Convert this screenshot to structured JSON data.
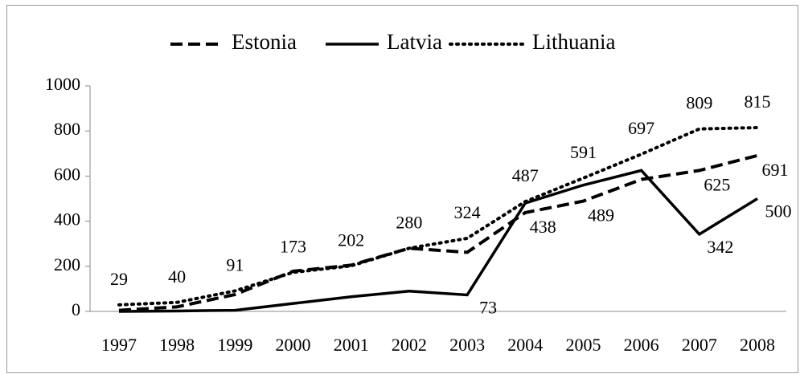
{
  "chart_data": {
    "type": "line",
    "categories": [
      "1997",
      "1998",
      "1999",
      "2000",
      "2001",
      "2002",
      "2003",
      "2004",
      "2005",
      "2006",
      "2007",
      "2008"
    ],
    "series": [
      {
        "name": "Estonia",
        "color": "#000000",
        "dash": "dashed",
        "values": [
          5,
          20,
          75,
          178,
          205,
          280,
          262,
          438,
          489,
          585,
          625,
          691
        ],
        "value_labels": [
          null,
          null,
          null,
          null,
          null,
          null,
          null,
          "438",
          "489",
          null,
          "625",
          "691"
        ]
      },
      {
        "name": "Latvia",
        "color": "#000000",
        "dash": "solid",
        "values": [
          0,
          2,
          5,
          35,
          65,
          90,
          73,
          480,
          560,
          625,
          342,
          500
        ],
        "value_labels": [
          null,
          null,
          null,
          null,
          null,
          null,
          "73",
          null,
          null,
          null,
          "342",
          "500"
        ]
      },
      {
        "name": "Lithuania",
        "color": "#000000",
        "dash": "dotted",
        "values": [
          29,
          40,
          91,
          173,
          202,
          280,
          324,
          487,
          591,
          697,
          809,
          815
        ],
        "value_labels": [
          "29",
          "40",
          "91",
          "173",
          "202",
          "280",
          "324",
          "487",
          "591",
          "697",
          "809",
          "815"
        ]
      }
    ],
    "ylim": [
      0,
      1000
    ],
    "yticks": [
      0,
      200,
      400,
      600,
      800,
      1000
    ],
    "legend": "top",
    "grid": false
  }
}
